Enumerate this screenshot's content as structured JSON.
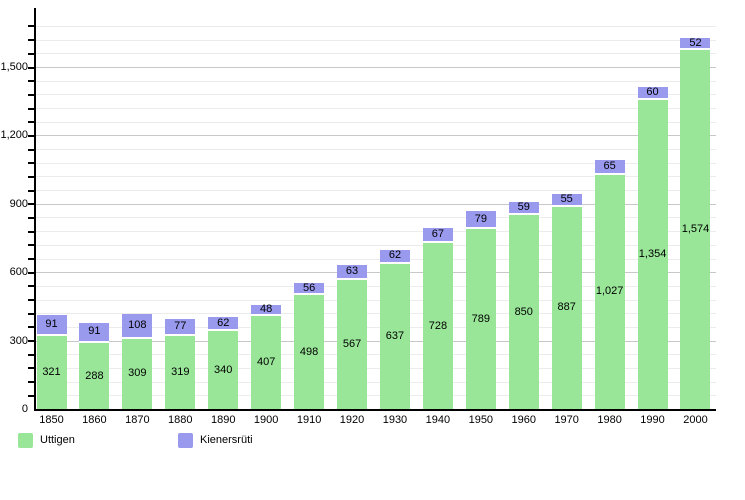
{
  "chart_data": {
    "type": "bar",
    "stacked": true,
    "title": "",
    "xlabel": "",
    "ylabel": "",
    "categories": [
      "1850",
      "1860",
      "1870",
      "1880",
      "1890",
      "1900",
      "1910",
      "1920",
      "1930",
      "1940",
      "1950",
      "1960",
      "1970",
      "1980",
      "1990",
      "2000"
    ],
    "series": [
      {
        "name": "Uttigen",
        "color": "#99e699",
        "values": [
          321,
          288,
          309,
          319,
          340,
          407,
          498,
          567,
          637,
          728,
          789,
          850,
          887,
          1027,
          1354,
          1574
        ]
      },
      {
        "name": "Kienersrüti",
        "color": "#9999ee",
        "values": [
          91,
          91,
          108,
          77,
          62,
          48,
          56,
          63,
          62,
          67,
          79,
          59,
          55,
          65,
          60,
          52
        ]
      }
    ],
    "value_labels_shown": true,
    "ylim": [
      0,
      1760
    ],
    "ytick_labels": [
      0,
      300,
      600,
      900,
      1200,
      1500
    ],
    "grid": true,
    "grid_minor_step": 60,
    "grid_major_step": 300,
    "legend_position": "bottom-left"
  },
  "colors": {
    "uttigen": "#99e699",
    "kienersruti": "#9999ee",
    "grid_minor": "#ececec",
    "grid_major": "#c8c8c8",
    "axis": "#000000",
    "background": "#ffffff",
    "label_text": "#000000"
  }
}
